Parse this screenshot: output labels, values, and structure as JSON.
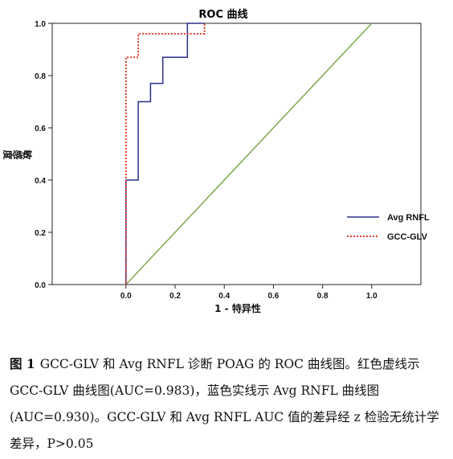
{
  "chart_data": {
    "type": "line",
    "title": "ROC 曲线",
    "xlabel": "1 - 特异性",
    "ylabel": "敏感度",
    "xlim": [
      -0.3,
      1.2
    ],
    "ylim": [
      0,
      1.0
    ],
    "x_ticks": [
      "0.0",
      "0.2",
      "0.4",
      "0.6",
      "0.8",
      "1.0"
    ],
    "y_ticks": [
      "0.0",
      "0.2",
      "0.4",
      "0.6",
      "0.8",
      "1.0"
    ],
    "grid": false,
    "legend_position": "right",
    "series": [
      {
        "name": "Avg RNFL",
        "color": "#2b2f8c",
        "style": "solid",
        "points": [
          [
            0,
            0
          ],
          [
            0,
            0.4
          ],
          [
            0.05,
            0.4
          ],
          [
            0.05,
            0.7
          ],
          [
            0.1,
            0.7
          ],
          [
            0.1,
            0.77
          ],
          [
            0.15,
            0.77
          ],
          [
            0.15,
            0.87
          ],
          [
            0.25,
            0.87
          ],
          [
            0.25,
            1.0
          ],
          [
            0.32,
            1.0
          ]
        ]
      },
      {
        "name": "GCC-GLV",
        "color": "#e03a2c",
        "style": "dotted",
        "points": [
          [
            0,
            0
          ],
          [
            0,
            0.87
          ],
          [
            0.05,
            0.87
          ],
          [
            0.05,
            0.96
          ],
          [
            0.32,
            0.96
          ],
          [
            0.32,
            1.0
          ]
        ]
      },
      {
        "name": "",
        "color": "#7fa84f",
        "style": "solid",
        "points": [
          [
            0,
            0
          ],
          [
            1,
            1
          ]
        ]
      }
    ]
  },
  "caption": {
    "label": "图 1",
    "text": "GCC-GLV 和 Avg RNFL 诊断 POAG 的 ROC 曲线图。红色虚线示 GCC-GLV 曲线图(AUC=0.983)，蓝色实线示 Avg RNFL 曲线图(AUC=0.930)。GCC-GLV 和 Avg RNFL AUC 值的差异经 z 检验无统计学差异，P>0.05"
  }
}
